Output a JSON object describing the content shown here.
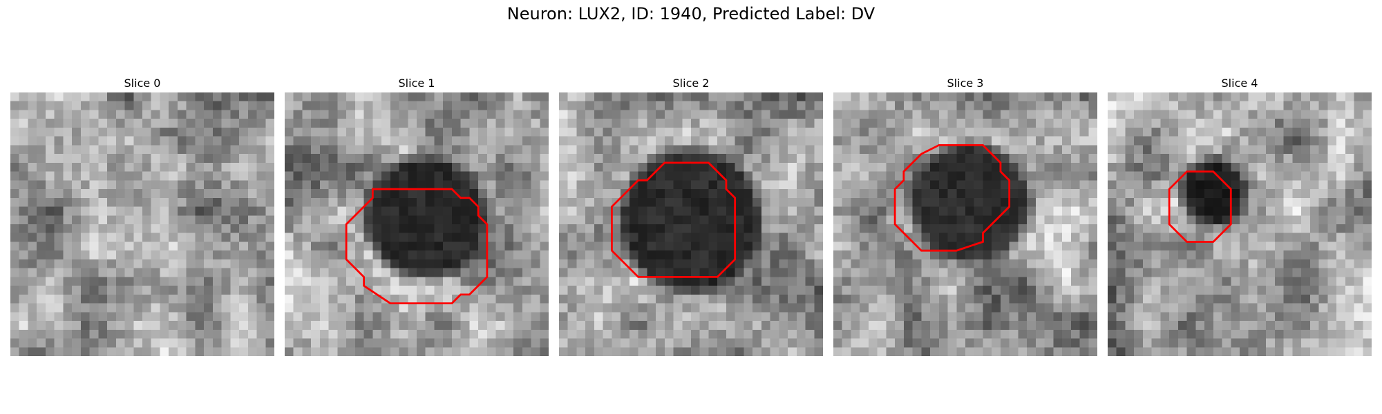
{
  "figure": {
    "title": "Neuron: LUX2, ID: 1940, Predicted Label: DV"
  },
  "contour_color": "#ff0000",
  "panels": [
    {
      "label": "Slice 0",
      "blob": null,
      "contour": null
    },
    {
      "label": "Slice 1",
      "blob": {
        "cx": 16.0,
        "cy": 14.2,
        "r": 6.2,
        "level": 0.16
      },
      "contour": [
        [
          10,
          11
        ],
        [
          19,
          11
        ],
        [
          20,
          12
        ],
        [
          21,
          12
        ],
        [
          22,
          13
        ],
        [
          22,
          14
        ],
        [
          23,
          15
        ],
        [
          23,
          21
        ],
        [
          21,
          23
        ],
        [
          20,
          23
        ],
        [
          19,
          24
        ],
        [
          19,
          24
        ],
        [
          12,
          24
        ],
        [
          9,
          22
        ],
        [
          9,
          21
        ],
        [
          8,
          20
        ],
        [
          7,
          19
        ],
        [
          7,
          15
        ],
        [
          10,
          12
        ]
      ]
    },
    {
      "label": "Slice 2",
      "blob": {
        "cx": 15.0,
        "cy": 14.6,
        "r": 7.4,
        "level": 0.17
      },
      "contour": [
        [
          12,
          8
        ],
        [
          17,
          8
        ],
        [
          18,
          9
        ],
        [
          19,
          10
        ],
        [
          19,
          11
        ],
        [
          20,
          12
        ],
        [
          20,
          19
        ],
        [
          18,
          21
        ],
        [
          18,
          21
        ],
        [
          9,
          21
        ],
        [
          6,
          18
        ],
        [
          6,
          13
        ],
        [
          8,
          11
        ],
        [
          9,
          10
        ],
        [
          10,
          10
        ]
      ]
    },
    {
      "label": "Slice 3",
      "blob": {
        "cx": 15.5,
        "cy": 12.5,
        "r": 6.0,
        "level": 0.18
      },
      "contour": [
        [
          12,
          6
        ],
        [
          17,
          6
        ],
        [
          18,
          7
        ],
        [
          19,
          8
        ],
        [
          19,
          9
        ],
        [
          20,
          10
        ],
        [
          20,
          13
        ],
        [
          17,
          16
        ],
        [
          17,
          17
        ],
        [
          14,
          18
        ],
        [
          10,
          18
        ],
        [
          7,
          15
        ],
        [
          7,
          11
        ],
        [
          8,
          10
        ],
        [
          8,
          9
        ],
        [
          9,
          8
        ],
        [
          10,
          7
        ]
      ]
    },
    {
      "label": "Slice 4",
      "blob": {
        "cx": 12.0,
        "cy": 11.4,
        "r": 3.0,
        "level": 0.12
      },
      "contour": [
        [
          9,
          9
        ],
        [
          12,
          9
        ],
        [
          14,
          11
        ],
        [
          14,
          15
        ],
        [
          13,
          16
        ],
        [
          13,
          16
        ],
        [
          12,
          17
        ],
        [
          9,
          17
        ],
        [
          8,
          16
        ],
        [
          8,
          16
        ],
        [
          7,
          15
        ],
        [
          7,
          11
        ],
        [
          8,
          10
        ]
      ]
    }
  ]
}
